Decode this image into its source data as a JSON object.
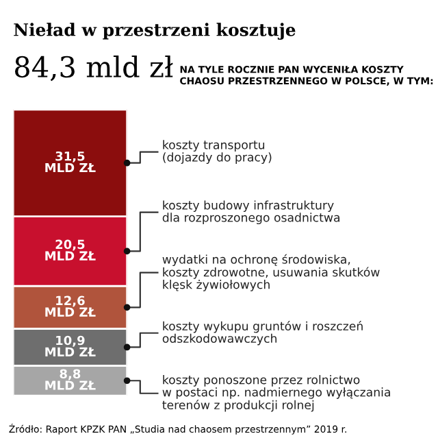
{
  "chart_data": {
    "type": "bar",
    "stacked": true,
    "title": "Nieład w przestrzeni kosztuje",
    "subtitle": "84,3 mld zł",
    "annotations": [
      "NA TYLE ROCZNIE PAN WYCENIŁA KOSZTY\nCHAOSU PRZESTRZENNEGO W POLSCE, W TYM:",
      "Źródło: Raport KPZK PAN „Studia nad chaosem przestrzennym” 2019 r."
    ],
    "categories": [
      null
    ],
    "series": [
      {
        "name": "koszty ponoszone przez rolnictwo\nw postaci np. nadmiernego wyłączania\nterenów z produkcji rolnej",
        "color": "#a6a6a6",
        "values": [
          8.8
        ],
        "value_labels": [
          "8,8\nMLD ZŁ"
        ]
      },
      {
        "name": "koszty wykupu gruntów i roszczeń\nodszkodowawczych",
        "color": "#6e6e6e",
        "values": [
          10.9
        ],
        "value_labels": [
          "10,9\nMLD ZŁ"
        ]
      },
      {
        "name": "wydatki na ochronę środowiska,\nkoszty zdrowotne, usuwania skutków\nklęsk żywiołowych",
        "color": "#b0543c",
        "values": [
          12.6
        ],
        "value_labels": [
          "12,6\nMLD ZŁ"
        ]
      },
      {
        "name": "koszty budowy infrastruktury\ndla rozproszonego osadnictwa",
        "color": "#c8102e",
        "values": [
          20.5
        ],
        "value_labels": [
          "20,5\nMLD ZŁ"
        ]
      },
      {
        "name": "koszty transportu\n(dojazdy do pracy)",
        "color": "#8b0d0d",
        "values": [
          31.5
        ],
        "value_labels": [
          "31,5\nMLD ZŁ"
        ]
      }
    ]
  }
}
